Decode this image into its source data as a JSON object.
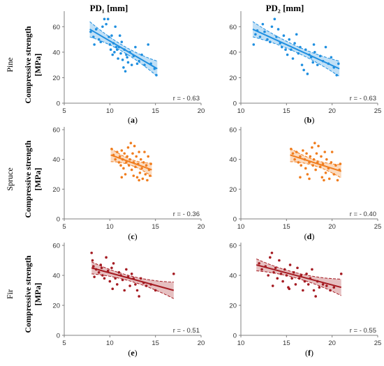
{
  "columns": [
    "PD₁ [mm]",
    "PD₂ [mm]"
  ],
  "rows": [
    {
      "species": "Pine",
      "ylabel": "Compressive strength",
      "yunit": "[MPa]"
    },
    {
      "species": "Spruce",
      "ylabel": "Compressive strength",
      "yunit": "[MPa]"
    },
    {
      "species": "Fir",
      "ylabel": "Compressive strength",
      "yunit": "[MPa]"
    }
  ],
  "colors": {
    "pine": "#1f8fe0",
    "spruce": "#f07d1e",
    "fir": "#a51b22"
  },
  "chart_data": [
    {
      "panel": "(a)",
      "type": "scatter",
      "species": "Pine",
      "column": "PD₁ [mm]",
      "xlim": [
        5,
        20
      ],
      "xticks": [
        5,
        10,
        15,
        20
      ],
      "ylim": [
        0,
        70
      ],
      "yticks": [
        0,
        20,
        40,
        60
      ],
      "r_label": "r = - 0.63",
      "fit": {
        "x0": 7.8,
        "x1": 15.2,
        "y0": 58,
        "y1": 27,
        "ci_w": [
          6,
          2.5,
          6
        ]
      },
      "points": [
        [
          7.9,
          56
        ],
        [
          8.2,
          52
        ],
        [
          8.3,
          46
        ],
        [
          8.5,
          58
        ],
        [
          8.8,
          50
        ],
        [
          9.0,
          48
        ],
        [
          9.2,
          60
        ],
        [
          9.4,
          66
        ],
        [
          9.6,
          62
        ],
        [
          9.8,
          66
        ],
        [
          9.9,
          52
        ],
        [
          10.0,
          46
        ],
        [
          10.1,
          42
        ],
        [
          10.2,
          53
        ],
        [
          10.3,
          38
        ],
        [
          10.4,
          47
        ],
        [
          10.5,
          40
        ],
        [
          10.6,
          60
        ],
        [
          10.7,
          44
        ],
        [
          10.8,
          42
        ],
        [
          10.9,
          35
        ],
        [
          11.0,
          44
        ],
        [
          11.1,
          53
        ],
        [
          11.2,
          39
        ],
        [
          11.3,
          48
        ],
        [
          11.4,
          34
        ],
        [
          11.5,
          28
        ],
        [
          11.6,
          42
        ],
        [
          11.7,
          25
        ],
        [
          11.8,
          38
        ],
        [
          11.9,
          36
        ],
        [
          12.0,
          32
        ],
        [
          12.2,
          40
        ],
        [
          12.4,
          30
        ],
        [
          12.6,
          37
        ],
        [
          12.8,
          44
        ],
        [
          13.0,
          31
        ],
        [
          13.2,
          33
        ],
        [
          13.5,
          38
        ],
        [
          13.8,
          30
        ],
        [
          14.2,
          46
        ],
        [
          14.5,
          31
        ],
        [
          14.9,
          27
        ],
        [
          15.1,
          22
        ]
      ]
    },
    {
      "panel": "(b)",
      "type": "scatter",
      "species": "Pine",
      "column": "PD₂ [mm]",
      "xlim": [
        10,
        25
      ],
      "xticks": [
        10,
        15,
        20,
        25
      ],
      "ylim": [
        0,
        70
      ],
      "yticks": [
        0,
        20,
        40,
        60
      ],
      "r_label": "r = - 0.63",
      "fit": {
        "x0": 11.3,
        "x1": 20.8,
        "y0": 58,
        "y1": 27,
        "ci_w": [
          6,
          2.5,
          6
        ]
      },
      "points": [
        [
          11.4,
          46
        ],
        [
          11.6,
          54
        ],
        [
          11.8,
          57
        ],
        [
          12.1,
          52
        ],
        [
          12.4,
          62
        ],
        [
          12.6,
          56
        ],
        [
          12.9,
          50
        ],
        [
          13.2,
          48
        ],
        [
          13.4,
          60
        ],
        [
          13.7,
          66
        ],
        [
          13.9,
          52
        ],
        [
          14.1,
          58
        ],
        [
          14.3,
          47
        ],
        [
          14.5,
          44
        ],
        [
          14.7,
          53
        ],
        [
          14.9,
          42
        ],
        [
          15.1,
          38
        ],
        [
          15.3,
          50
        ],
        [
          15.5,
          42
        ],
        [
          15.7,
          35
        ],
        [
          15.9,
          47
        ],
        [
          16.1,
          54
        ],
        [
          16.3,
          39
        ],
        [
          16.5,
          44
        ],
        [
          16.7,
          30
        ],
        [
          16.9,
          26
        ],
        [
          17.1,
          42
        ],
        [
          17.3,
          23
        ],
        [
          17.5,
          38
        ],
        [
          17.7,
          36
        ],
        [
          17.9,
          32
        ],
        [
          18.1,
          40
        ],
        [
          18.4,
          30
        ],
        [
          18.7,
          37
        ],
        [
          19.0,
          33
        ],
        [
          19.3,
          44
        ],
        [
          19.6,
          31
        ],
        [
          19.9,
          36
        ],
        [
          20.2,
          28
        ],
        [
          20.5,
          22
        ],
        [
          20.7,
          31
        ],
        [
          18.0,
          46
        ]
      ]
    },
    {
      "panel": "(c)",
      "type": "scatter",
      "species": "Spruce",
      "column": "PD₁ [mm]",
      "xlim": [
        5,
        20
      ],
      "xticks": [
        5,
        10,
        15,
        20
      ],
      "ylim": [
        0,
        60
      ],
      "yticks": [
        0,
        20,
        40,
        60
      ],
      "r_label": "r = - 0.36",
      "fit": {
        "x0": 10.1,
        "x1": 14.6,
        "y0": 43,
        "y1": 33,
        "ci_w": [
          4.5,
          2,
          4.5
        ]
      },
      "points": [
        [
          10.2,
          47
        ],
        [
          10.4,
          43
        ],
        [
          10.6,
          40
        ],
        [
          10.8,
          45
        ],
        [
          11.0,
          38
        ],
        [
          11.1,
          42
        ],
        [
          11.2,
          36
        ],
        [
          11.3,
          46
        ],
        [
          11.4,
          40
        ],
        [
          11.5,
          34
        ],
        [
          11.6,
          44
        ],
        [
          11.7,
          30
        ],
        [
          11.8,
          38
        ],
        [
          11.9,
          42
        ],
        [
          12.0,
          48
        ],
        [
          12.1,
          36
        ],
        [
          12.2,
          40
        ],
        [
          12.3,
          51
        ],
        [
          12.4,
          33
        ],
        [
          12.5,
          44
        ],
        [
          12.6,
          38
        ],
        [
          12.7,
          49
        ],
        [
          12.8,
          35
        ],
        [
          12.9,
          42
        ],
        [
          13.0,
          28
        ],
        [
          13.1,
          37
        ],
        [
          13.2,
          45
        ],
        [
          13.3,
          31
        ],
        [
          13.4,
          40
        ],
        [
          13.5,
          34
        ],
        [
          13.6,
          27
        ],
        [
          13.7,
          38
        ],
        [
          13.8,
          45
        ],
        [
          13.9,
          30
        ],
        [
          14.0,
          36
        ],
        [
          14.1,
          26
        ],
        [
          14.2,
          42
        ],
        [
          14.3,
          33
        ],
        [
          14.4,
          29
        ],
        [
          14.5,
          37
        ],
        [
          11.3,
          28
        ],
        [
          12.6,
          29
        ],
        [
          13.2,
          26
        ]
      ]
    },
    {
      "panel": "(d)",
      "type": "scatter",
      "species": "Spruce",
      "column": "PD₂ [mm]",
      "xlim": [
        10,
        25
      ],
      "xticks": [
        10,
        15,
        20,
        25
      ],
      "ylim": [
        0,
        60
      ],
      "yticks": [
        0,
        20,
        40,
        60
      ],
      "r_label": "r = - 0.40",
      "fit": {
        "x0": 15.4,
        "x1": 21.0,
        "y0": 43,
        "y1": 32,
        "ci_w": [
          4.5,
          2,
          4.5
        ]
      },
      "points": [
        [
          15.5,
          47
        ],
        [
          15.7,
          44
        ],
        [
          15.9,
          40
        ],
        [
          16.1,
          45
        ],
        [
          16.3,
          38
        ],
        [
          16.5,
          42
        ],
        [
          16.6,
          36
        ],
        [
          16.8,
          46
        ],
        [
          17.0,
          40
        ],
        [
          17.1,
          34
        ],
        [
          17.2,
          44
        ],
        [
          17.3,
          30
        ],
        [
          17.5,
          38
        ],
        [
          17.6,
          42
        ],
        [
          17.8,
          48
        ],
        [
          17.9,
          36
        ],
        [
          18.0,
          40
        ],
        [
          18.1,
          51
        ],
        [
          18.2,
          33
        ],
        [
          18.3,
          44
        ],
        [
          18.4,
          38
        ],
        [
          18.5,
          49
        ],
        [
          18.7,
          35
        ],
        [
          18.8,
          42
        ],
        [
          18.9,
          28
        ],
        [
          19.0,
          37
        ],
        [
          19.2,
          45
        ],
        [
          19.3,
          31
        ],
        [
          19.4,
          40
        ],
        [
          19.6,
          34
        ],
        [
          19.7,
          27
        ],
        [
          19.9,
          38
        ],
        [
          20.0,
          45
        ],
        [
          20.2,
          30
        ],
        [
          20.4,
          36
        ],
        [
          20.6,
          26
        ],
        [
          20.8,
          33
        ],
        [
          20.9,
          37
        ],
        [
          16.5,
          28
        ],
        [
          17.5,
          27
        ],
        [
          19.1,
          26
        ]
      ]
    },
    {
      "panel": "(e)",
      "type": "scatter",
      "species": "Fir",
      "column": "PD₁ [mm]",
      "xlim": [
        5,
        20
      ],
      "xticks": [
        5,
        10,
        15,
        20
      ],
      "ylim": [
        0,
        60
      ],
      "yticks": [
        0,
        20,
        40,
        60
      ],
      "r_label": "r = - 0.51",
      "fit": {
        "x0": 8.0,
        "x1": 17.0,
        "y0": 45,
        "y1": 30,
        "ci_w": [
          4,
          1.8,
          5.5
        ]
      },
      "points": [
        [
          8.0,
          55
        ],
        [
          8.1,
          50
        ],
        [
          8.2,
          46
        ],
        [
          8.3,
          39
        ],
        [
          8.5,
          44
        ],
        [
          8.8,
          42
        ],
        [
          9.0,
          47
        ],
        [
          9.2,
          40
        ],
        [
          9.4,
          38
        ],
        [
          9.6,
          52
        ],
        [
          9.8,
          43
        ],
        [
          10.0,
          36
        ],
        [
          10.2,
          45
        ],
        [
          10.4,
          48
        ],
        [
          10.6,
          38
        ],
        [
          10.8,
          34
        ],
        [
          11.0,
          42
        ],
        [
          11.2,
          40
        ],
        [
          11.4,
          37
        ],
        [
          11.6,
          30
        ],
        [
          11.8,
          44
        ],
        [
          12.0,
          39
        ],
        [
          12.2,
          33
        ],
        [
          12.4,
          41
        ],
        [
          12.6,
          38
        ],
        [
          12.8,
          34
        ],
        [
          13.0,
          30
        ],
        [
          13.2,
          26
        ],
        [
          13.4,
          38
        ],
        [
          13.7,
          35
        ],
        [
          14.0,
          33
        ],
        [
          14.5,
          34
        ],
        [
          15.0,
          30
        ],
        [
          17.0,
          41
        ],
        [
          9.1,
          45
        ],
        [
          10.3,
          31
        ]
      ]
    },
    {
      "panel": "(f)",
      "type": "scatter",
      "species": "Fir",
      "column": "PD₂ [mm]",
      "xlim": [
        10,
        25
      ],
      "xticks": [
        10,
        15,
        20,
        25
      ],
      "ylim": [
        0,
        60
      ],
      "yticks": [
        0,
        20,
        40,
        60
      ],
      "r_label": "r = - 0.55",
      "fit": {
        "x0": 11.7,
        "x1": 21.0,
        "y0": 47,
        "y1": 32,
        "ci_w": [
          4,
          1.8,
          5.5
        ]
      },
      "points": [
        [
          12.0,
          48
        ],
        [
          12.3,
          44
        ],
        [
          12.7,
          46
        ],
        [
          13.0,
          40
        ],
        [
          13.2,
          52
        ],
        [
          13.4,
          55
        ],
        [
          13.6,
          42
        ],
        [
          13.8,
          45
        ],
        [
          14.0,
          38
        ],
        [
          14.2,
          50
        ],
        [
          14.4,
          41
        ],
        [
          14.6,
          36
        ],
        [
          14.8,
          44
        ],
        [
          15.0,
          40
        ],
        [
          15.2,
          32
        ],
        [
          15.4,
          47
        ],
        [
          15.6,
          38
        ],
        [
          15.8,
          42
        ],
        [
          16.0,
          34
        ],
        [
          16.2,
          45
        ],
        [
          16.4,
          38
        ],
        [
          16.6,
          40
        ],
        [
          16.8,
          30
        ],
        [
          17.0,
          36
        ],
        [
          17.2,
          41
        ],
        [
          17.4,
          34
        ],
        [
          17.6,
          38
        ],
        [
          17.8,
          44
        ],
        [
          18.0,
          30
        ],
        [
          18.2,
          26
        ],
        [
          18.4,
          36
        ],
        [
          18.6,
          32
        ],
        [
          19.0,
          34
        ],
        [
          19.4,
          33
        ],
        [
          19.8,
          30
        ],
        [
          20.2,
          32
        ],
        [
          21.0,
          41
        ],
        [
          13.5,
          33
        ],
        [
          15.3,
          31
        ]
      ]
    }
  ]
}
